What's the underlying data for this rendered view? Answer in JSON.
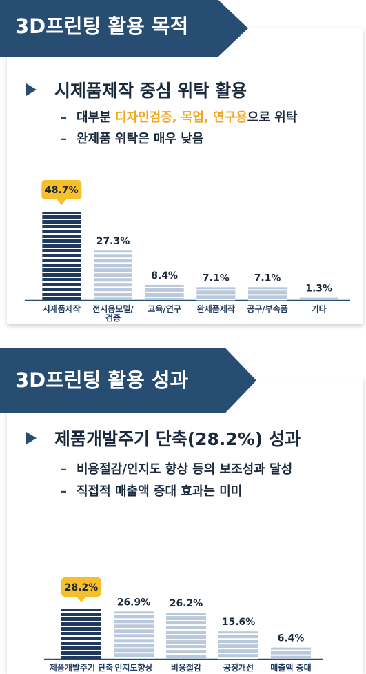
{
  "sections": [
    {
      "banner": "3D프린팅 활용 목적",
      "heading": "시제품제작 중심 위탁 활용",
      "bullets": [
        {
          "dash": "–",
          "pre": "대부분 ",
          "highlight": "디자인검증, 목업, 연구용",
          "post": "으로 위탁"
        },
        {
          "dash": "–",
          "pre": "완제품 위탁은 매우 낮음",
          "highlight": "",
          "post": ""
        }
      ]
    },
    {
      "banner": "3D프린팅 활용 성과",
      "heading": "제품개발주기 단축(28.2%) 성과",
      "bullets": [
        {
          "dash": "–",
          "pre": "비용절감/인지도 향상 등의 보조성과 달성",
          "highlight": "",
          "post": ""
        },
        {
          "dash": "–",
          "pre": "직접적 매출액 증대 효과는 미미",
          "highlight": "",
          "post": ""
        }
      ]
    }
  ],
  "colors": {
    "navy": "#274e72",
    "highlight_bar": "#1f3a5c",
    "light_bar": "#b9c8da",
    "callout": "#f7bf2b",
    "highlight_text": "#f2a71b"
  },
  "chart_data": [
    {
      "type": "bar",
      "categories": [
        "시제품제작",
        "전시용모델/검증",
        "교육/연구",
        "완제품제작",
        "공구/부속품",
        "기타"
      ],
      "values": [
        48.7,
        27.3,
        8.4,
        7.1,
        7.1,
        1.3
      ],
      "value_labels": [
        "48.7%",
        "27.3%",
        "8.4%",
        "7.1%",
        "7.1%",
        "1.3%"
      ],
      "highlight_index": 0,
      "ylim": [
        0,
        50
      ]
    },
    {
      "type": "bar",
      "categories": [
        "제품개발주기 단축",
        "인지도향상",
        "비용절감",
        "공정개선",
        "매출액 증대"
      ],
      "values": [
        28.2,
        26.9,
        26.2,
        15.6,
        6.4
      ],
      "value_labels": [
        "28.2%",
        "26.9%",
        "26.2%",
        "15.6%",
        "6.4%"
      ],
      "highlight_index": 0,
      "ylim": [
        0,
        30
      ]
    }
  ]
}
